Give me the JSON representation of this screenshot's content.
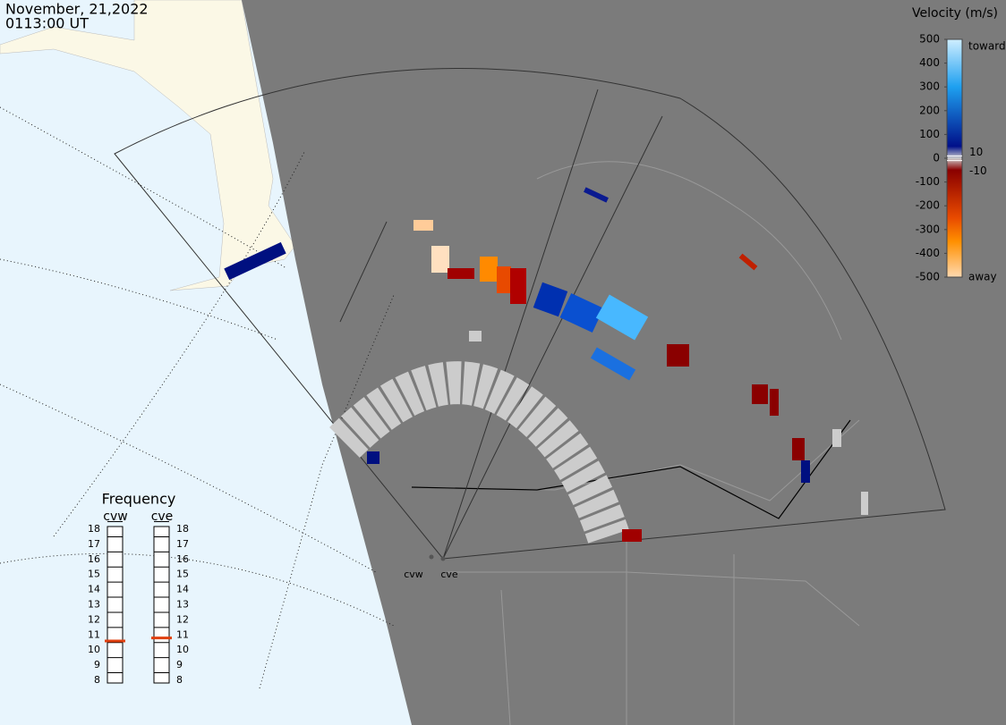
{
  "header": {
    "date": "November, 21,2022",
    "time": "0113:00 UT"
  },
  "colorbar": {
    "title": "Velocity (m/s)",
    "range": [
      -500,
      500
    ],
    "ticks": [
      500,
      400,
      300,
      200,
      100,
      0,
      -100,
      -200,
      -300,
      -400,
      -500
    ],
    "inner_ticks": [
      10,
      -10
    ],
    "toward": "toward",
    "away": "away"
  },
  "frequency": {
    "title": "Frequency",
    "range": [
      8,
      18
    ],
    "radars": [
      {
        "name": "cvw",
        "ticks": [
          18,
          17,
          16,
          15,
          14,
          13,
          12,
          11,
          10,
          9,
          8
        ],
        "value": 10.6
      },
      {
        "name": "cve",
        "ticks": [
          18,
          17,
          16,
          15,
          14,
          13,
          12,
          11,
          10,
          9,
          8
        ],
        "value": 10.8
      }
    ]
  },
  "map": {
    "sites": [
      "cvw",
      "cve"
    ]
  }
}
